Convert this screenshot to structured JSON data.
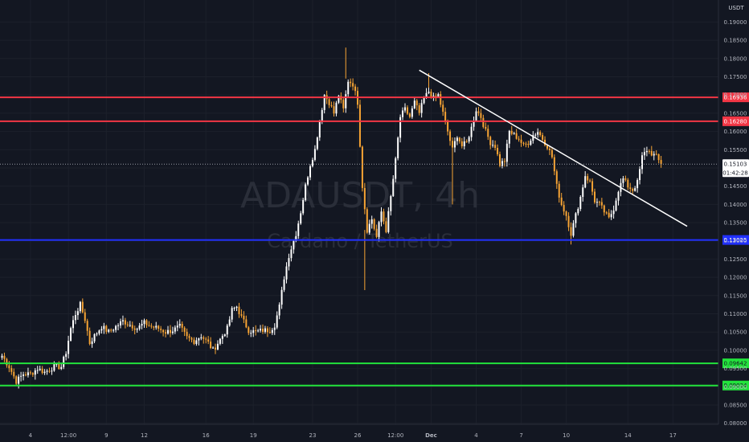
{
  "chart_data": {
    "type": "candlestick",
    "symbol": "ADAUSDT, 4h",
    "description": "Cardano / TetherUS",
    "currency": "USDT",
    "current_price": "0.15103",
    "countdown": "01:42:28",
    "y_ticks": [
      "0.19000",
      "0.18500",
      "0.18000",
      "0.17500",
      "0.17000",
      "0.16500",
      "0.16000",
      "0.15500",
      "0.15000",
      "0.14500",
      "0.14000",
      "0.13500",
      "0.13000",
      "0.12500",
      "0.12000",
      "0.11500",
      "0.11000",
      "0.10500",
      "0.10000",
      "0.09500",
      "0.09000",
      "0.08500",
      "0.08000"
    ],
    "x_ticks": [
      {
        "label": "4",
        "bar": 12
      },
      {
        "label": "12:00",
        "bar": 28
      },
      {
        "label": "9",
        "bar": 44
      },
      {
        "label": "12",
        "bar": 60
      },
      {
        "label": "16",
        "bar": 86
      },
      {
        "label": "19",
        "bar": 106
      },
      {
        "label": "23",
        "bar": 131
      },
      {
        "label": "26",
        "bar": 150
      },
      {
        "label": "12:00",
        "bar": 166
      },
      {
        "label": "Dec",
        "bar": 181,
        "bold": true
      },
      {
        "label": "4",
        "bar": 200
      },
      {
        "label": "7",
        "bar": 219
      },
      {
        "label": "10",
        "bar": 238
      },
      {
        "label": "14",
        "bar": 264
      },
      {
        "label": "17",
        "bar": 283
      }
    ],
    "ylim": [
      0.0775,
      0.1945
    ],
    "horizontal_levels": [
      {
        "value": 0.16936,
        "label": "0.16936",
        "color": "#f23645"
      },
      {
        "value": 0.1628,
        "label": "0.16280",
        "color": "#f23645"
      },
      {
        "value": 0.13025,
        "label": "0.13025",
        "color": "#2130ff"
      },
      {
        "value": 0.09642,
        "label": "0.09642",
        "color": "#22e33c"
      },
      {
        "value": 0.09034,
        "label": "0.09034",
        "color": "#22e33c"
      }
    ],
    "trendline": {
      "bar1": 176,
      "value1": 0.1768,
      "bar2": 289,
      "value2": 0.134,
      "color": "#ffffff"
    },
    "up_color": "#ffffff",
    "down_color": "#f7a434",
    "anchors": [
      [
        0,
        0.0985
      ],
      [
        3,
        0.0955
      ],
      [
        6,
        0.0915
      ],
      [
        9,
        0.0935
      ],
      [
        12,
        0.0935
      ],
      [
        15,
        0.095
      ],
      [
        18,
        0.094
      ],
      [
        22,
        0.0955
      ],
      [
        25,
        0.0955
      ],
      [
        27,
        0.0995
      ],
      [
        29,
        0.106
      ],
      [
        31,
        0.11
      ],
      [
        33,
        0.1125
      ],
      [
        35,
        0.1085
      ],
      [
        37,
        0.102
      ],
      [
        39,
        0.104
      ],
      [
        42,
        0.1065
      ],
      [
        45,
        0.105
      ],
      [
        48,
        0.1065
      ],
      [
        51,
        0.108
      ],
      [
        54,
        0.107
      ],
      [
        57,
        0.106
      ],
      [
        60,
        0.1075
      ],
      [
        63,
        0.1065
      ],
      [
        66,
        0.106
      ],
      [
        69,
        0.105
      ],
      [
        72,
        0.1055
      ],
      [
        75,
        0.1065
      ],
      [
        78,
        0.1035
      ],
      [
        81,
        0.1025
      ],
      [
        84,
        0.104
      ],
      [
        87,
        0.102
      ],
      [
        89,
        0.1
      ],
      [
        92,
        0.103
      ],
      [
        95,
        0.106
      ],
      [
        97,
        0.111
      ],
      [
        99,
        0.112
      ],
      [
        101,
        0.109
      ],
      [
        104,
        0.1055
      ],
      [
        107,
        0.105
      ],
      [
        110,
        0.1055
      ],
      [
        113,
        0.1055
      ],
      [
        115,
        0.107
      ],
      [
        117,
        0.112
      ],
      [
        119,
        0.12
      ],
      [
        121,
        0.126
      ],
      [
        124,
        0.132
      ],
      [
        126,
        0.138
      ],
      [
        128,
        0.145
      ],
      [
        130,
        0.151
      ],
      [
        132,
        0.155
      ],
      [
        134,
        0.163
      ],
      [
        136,
        0.17
      ],
      [
        138,
        0.168
      ],
      [
        140,
        0.165
      ],
      [
        142,
        0.17
      ],
      [
        144,
        0.166
      ],
      [
        146,
        0.174
      ],
      [
        148,
        0.173
      ],
      [
        150,
        0.168
      ],
      [
        152,
        0.145
      ],
      [
        154,
        0.133
      ],
      [
        156,
        0.136
      ],
      [
        158,
        0.131
      ],
      [
        160,
        0.138
      ],
      [
        162,
        0.133
      ],
      [
        164,
        0.142
      ],
      [
        166,
        0.152
      ],
      [
        168,
        0.164
      ],
      [
        170,
        0.166
      ],
      [
        172,
        0.164
      ],
      [
        174,
        0.168
      ],
      [
        176,
        0.165
      ],
      [
        178,
        0.169
      ],
      [
        180,
        0.171
      ],
      [
        182,
        0.169
      ],
      [
        184,
        0.17
      ],
      [
        186,
        0.165
      ],
      [
        188,
        0.16
      ],
      [
        190,
        0.155
      ],
      [
        192,
        0.159
      ],
      [
        194,
        0.156
      ],
      [
        196,
        0.157
      ],
      [
        198,
        0.161
      ],
      [
        200,
        0.166
      ],
      [
        202,
        0.164
      ],
      [
        204,
        0.16
      ],
      [
        206,
        0.157
      ],
      [
        208,
        0.156
      ],
      [
        210,
        0.151
      ],
      [
        212,
        0.152
      ],
      [
        214,
        0.16
      ],
      [
        216,
        0.159
      ],
      [
        218,
        0.158
      ],
      [
        220,
        0.156
      ],
      [
        222,
        0.157
      ],
      [
        224,
        0.159
      ],
      [
        226,
        0.16
      ],
      [
        228,
        0.158
      ],
      [
        230,
        0.156
      ],
      [
        232,
        0.153
      ],
      [
        234,
        0.145
      ],
      [
        236,
        0.14
      ],
      [
        238,
        0.137
      ],
      [
        240,
        0.132
      ],
      [
        242,
        0.137
      ],
      [
        244,
        0.142
      ],
      [
        246,
        0.148
      ],
      [
        248,
        0.146
      ],
      [
        250,
        0.141
      ],
      [
        252,
        0.14
      ],
      [
        254,
        0.138
      ],
      [
        256,
        0.136
      ],
      [
        258,
        0.139
      ],
      [
        260,
        0.144
      ],
      [
        262,
        0.147
      ],
      [
        264,
        0.145
      ],
      [
        266,
        0.144
      ],
      [
        268,
        0.146
      ],
      [
        270,
        0.153
      ],
      [
        272,
        0.155
      ],
      [
        274,
        0.154
      ],
      [
        276,
        0.153
      ],
      [
        278,
        0.151
      ]
    ]
  }
}
